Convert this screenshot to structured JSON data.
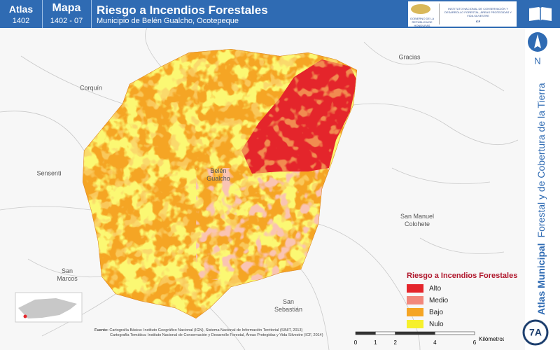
{
  "header": {
    "atlas_label": "Atlas",
    "atlas_number": "1402",
    "map_label": "Mapa",
    "map_number": "1402 - 07",
    "title": "Riesgo a Incendios Forestales",
    "subtitle": "Municipio de Belén Gualcho, Ocotepeque",
    "logo": {
      "government": "GOBIERNO DE LA REPÚBLICA DE HONDURAS",
      "institute": "INSTITUTO NACIONAL DE CONSERVACIÓN Y DESARROLLO FORESTAL, ÁREAS PROTEGIDAS Y VIDA SILVESTRE",
      "acronym": "ICF"
    }
  },
  "places": [
    "Gracias",
    "Corquín",
    "Sensenti",
    "Belén Gualcho",
    "San Manuel Colohete",
    "San Marcos",
    "San Sebastián"
  ],
  "legend": {
    "title": "Riesgo a Incendios Forestales",
    "items": [
      {
        "label": "Alto",
        "color": "#e4252b"
      },
      {
        "label": "Medio",
        "color": "#f2877b"
      },
      {
        "label": "Bajo",
        "color": "#f5a524"
      },
      {
        "label": "Nulo",
        "color": "#f6f02c"
      }
    ]
  },
  "north": "N",
  "side": {
    "bold": "Atlas Municipal",
    "regular": "Forestal y de Cobertura de la Tierra"
  },
  "badge": "7A",
  "scale": {
    "ticks": [
      "0",
      "1",
      "2",
      "4",
      "6"
    ],
    "unit": "Kilómetros"
  },
  "source": {
    "label": "Fuente:",
    "lines": [
      "Cartografía Básica: Instituto Geográfico Nacional (IGN), Sistema Nacional de Información Territorial (SINIT, 2013)",
      "Cartografía Temática: Instituto Nacional de Conservación y Desarrollo Forestal, Áreas Protegidas y Vida Silvestre (ICF, 2014)"
    ]
  }
}
